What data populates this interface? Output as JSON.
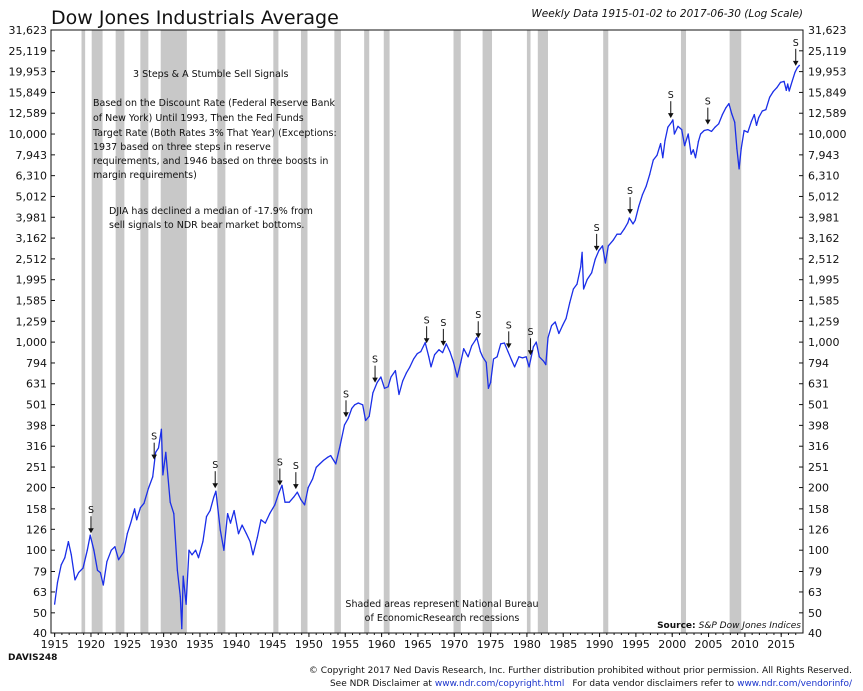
{
  "chart_data": {
    "type": "line",
    "title": "Dow Jones Industrials Average",
    "subtitle": "Weekly Data 1915-01-02 to 2017-06-30 (Log Scale)",
    "x_ticks": [
      "1915",
      "1920",
      "1925",
      "1930",
      "1935",
      "1940",
      "1945",
      "1950",
      "1955",
      "1960",
      "1965",
      "1970",
      "1975",
      "1980",
      "1985",
      "1990",
      "1995",
      "2000",
      "2005",
      "2010",
      "2015"
    ],
    "y_ticks": [
      "40",
      "50",
      "63",
      "79",
      "100",
      "126",
      "158",
      "200",
      "251",
      "316",
      "398",
      "501",
      "631",
      "794",
      "1,000",
      "1,259",
      "1,585",
      "1,995",
      "2,512",
      "3,162",
      "3,981",
      "5,012",
      "6,310",
      "7,943",
      "10,000",
      "12,589",
      "15,849",
      "19,953",
      "25,119",
      "31,623"
    ],
    "y_scale": "log",
    "xlim": [
      1914.5,
      2018.0
    ],
    "ylim": [
      40,
      31623
    ],
    "line_color": "#1a2ee8",
    "recession_color": "#c8c8c8",
    "recessions": [
      [
        1918.7,
        1919.2
      ],
      [
        1920.1,
        1921.6
      ],
      [
        1923.4,
        1924.6
      ],
      [
        1926.8,
        1927.9
      ],
      [
        1929.6,
        1933.2
      ],
      [
        1937.4,
        1938.5
      ],
      [
        1945.1,
        1945.8
      ],
      [
        1948.9,
        1949.8
      ],
      [
        1953.5,
        1954.4
      ],
      [
        1957.6,
        1958.3
      ],
      [
        1960.3,
        1961.1
      ],
      [
        1969.9,
        1970.9
      ],
      [
        1973.9,
        1975.2
      ],
      [
        1980.0,
        1980.5
      ],
      [
        1981.5,
        1982.9
      ],
      [
        1990.5,
        1991.2
      ],
      [
        2001.2,
        2001.9
      ],
      [
        2007.9,
        2009.5
      ]
    ],
    "series": [
      {
        "values": [
          [
            1915.0,
            55
          ],
          [
            1915.4,
            70
          ],
          [
            1915.9,
            85
          ],
          [
            1916.4,
            92
          ],
          [
            1916.9,
            110
          ],
          [
            1917.3,
            95
          ],
          [
            1917.8,
            72
          ],
          [
            1918.3,
            78
          ],
          [
            1918.9,
            82
          ],
          [
            1919.5,
            100
          ],
          [
            1919.9,
            118
          ],
          [
            1920.4,
            100
          ],
          [
            1920.9,
            80
          ],
          [
            1921.3,
            78
          ],
          [
            1921.7,
            68
          ],
          [
            1922.2,
            88
          ],
          [
            1922.8,
            100
          ],
          [
            1923.3,
            104
          ],
          [
            1923.8,
            90
          ],
          [
            1924.5,
            98
          ],
          [
            1925.0,
            120
          ],
          [
            1925.5,
            136
          ],
          [
            1926.0,
            158
          ],
          [
            1926.3,
            140
          ],
          [
            1926.8,
            160
          ],
          [
            1927.3,
            168
          ],
          [
            1927.9,
            198
          ],
          [
            1928.5,
            225
          ],
          [
            1928.9,
            295
          ],
          [
            1929.3,
            310
          ],
          [
            1929.7,
            381
          ],
          [
            1929.9,
            230
          ],
          [
            1930.3,
            295
          ],
          [
            1930.9,
            170
          ],
          [
            1931.4,
            150
          ],
          [
            1931.9,
            80
          ],
          [
            1932.3,
            60
          ],
          [
            1932.5,
            42
          ],
          [
            1932.7,
            75
          ],
          [
            1933.1,
            55
          ],
          [
            1933.5,
            100
          ],
          [
            1933.9,
            95
          ],
          [
            1934.4,
            100
          ],
          [
            1934.8,
            92
          ],
          [
            1935.4,
            110
          ],
          [
            1935.9,
            145
          ],
          [
            1936.4,
            155
          ],
          [
            1936.9,
            180
          ],
          [
            1937.2,
            192
          ],
          [
            1937.8,
            125
          ],
          [
            1938.3,
            100
          ],
          [
            1938.8,
            150
          ],
          [
            1939.2,
            135
          ],
          [
            1939.7,
            155
          ],
          [
            1940.3,
            120
          ],
          [
            1940.8,
            132
          ],
          [
            1941.4,
            120
          ],
          [
            1941.9,
            110
          ],
          [
            1942.3,
            95
          ],
          [
            1942.9,
            115
          ],
          [
            1943.4,
            140
          ],
          [
            1944.0,
            135
          ],
          [
            1944.6,
            150
          ],
          [
            1945.3,
            165
          ],
          [
            1945.9,
            190
          ],
          [
            1946.3,
            205
          ],
          [
            1946.7,
            170
          ],
          [
            1947.3,
            170
          ],
          [
            1947.9,
            180
          ],
          [
            1948.4,
            190
          ],
          [
            1948.9,
            175
          ],
          [
            1949.4,
            165
          ],
          [
            1949.9,
            200
          ],
          [
            1950.5,
            220
          ],
          [
            1951.0,
            250
          ],
          [
            1951.5,
            260
          ],
          [
            1952.0,
            270
          ],
          [
            1952.6,
            280
          ],
          [
            1953.0,
            285
          ],
          [
            1953.7,
            260
          ],
          [
            1954.3,
            320
          ],
          [
            1954.9,
            400
          ],
          [
            1955.4,
            430
          ],
          [
            1955.9,
            480
          ],
          [
            1956.3,
            500
          ],
          [
            1956.8,
            510
          ],
          [
            1957.4,
            500
          ],
          [
            1957.8,
            420
          ],
          [
            1958.3,
            440
          ],
          [
            1958.8,
            570
          ],
          [
            1959.4,
            640
          ],
          [
            1959.9,
            680
          ],
          [
            1960.4,
            600
          ],
          [
            1960.9,
            610
          ],
          [
            1961.3,
            680
          ],
          [
            1961.9,
            730
          ],
          [
            1962.4,
            560
          ],
          [
            1962.9,
            650
          ],
          [
            1963.4,
            710
          ],
          [
            1963.9,
            760
          ],
          [
            1964.4,
            830
          ],
          [
            1964.9,
            880
          ],
          [
            1965.4,
            900
          ],
          [
            1966.0,
            995
          ],
          [
            1966.5,
            850
          ],
          [
            1966.8,
            760
          ],
          [
            1967.3,
            870
          ],
          [
            1967.9,
            920
          ],
          [
            1968.4,
            890
          ],
          [
            1968.9,
            980
          ],
          [
            1969.4,
            900
          ],
          [
            1969.9,
            800
          ],
          [
            1970.4,
            680
          ],
          [
            1970.9,
            800
          ],
          [
            1971.3,
            930
          ],
          [
            1971.9,
            850
          ],
          [
            1972.4,
            960
          ],
          [
            1972.9,
            1020
          ],
          [
            1973.1,
            1051
          ],
          [
            1973.6,
            900
          ],
          [
            1973.9,
            850
          ],
          [
            1974.4,
            800
          ],
          [
            1974.7,
            600
          ],
          [
            1975.0,
            640
          ],
          [
            1975.4,
            830
          ],
          [
            1975.9,
            850
          ],
          [
            1976.4,
            980
          ],
          [
            1976.9,
            990
          ],
          [
            1977.4,
            900
          ],
          [
            1977.9,
            820
          ],
          [
            1978.3,
            760
          ],
          [
            1978.9,
            850
          ],
          [
            1979.4,
            840
          ],
          [
            1979.9,
            850
          ],
          [
            1980.3,
            760
          ],
          [
            1980.9,
            950
          ],
          [
            1981.3,
            1000
          ],
          [
            1981.7,
            850
          ],
          [
            1982.3,
            810
          ],
          [
            1982.6,
            780
          ],
          [
            1982.9,
            1050
          ],
          [
            1983.4,
            1200
          ],
          [
            1983.9,
            1250
          ],
          [
            1984.4,
            1100
          ],
          [
            1984.9,
            1200
          ],
          [
            1985.4,
            1300
          ],
          [
            1985.9,
            1550
          ],
          [
            1986.4,
            1800
          ],
          [
            1986.9,
            1900
          ],
          [
            1987.4,
            2300
          ],
          [
            1987.6,
            2700
          ],
          [
            1987.8,
            1800
          ],
          [
            1988.3,
            2000
          ],
          [
            1988.9,
            2150
          ],
          [
            1989.4,
            2500
          ],
          [
            1989.9,
            2750
          ],
          [
            1990.4,
            2900
          ],
          [
            1990.8,
            2400
          ],
          [
            1991.2,
            2900
          ],
          [
            1991.9,
            3100
          ],
          [
            1992.4,
            3300
          ],
          [
            1992.9,
            3300
          ],
          [
            1993.4,
            3500
          ],
          [
            1993.9,
            3750
          ],
          [
            1994.1,
            3950
          ],
          [
            1994.6,
            3700
          ],
          [
            1994.9,
            3850
          ],
          [
            1995.4,
            4500
          ],
          [
            1995.9,
            5100
          ],
          [
            1996.4,
            5600
          ],
          [
            1996.9,
            6400
          ],
          [
            1997.4,
            7500
          ],
          [
            1997.9,
            7900
          ],
          [
            1998.4,
            9000
          ],
          [
            1998.7,
            7700
          ],
          [
            1999.0,
            9300
          ],
          [
            1999.4,
            10800
          ],
          [
            1999.9,
            11400
          ],
          [
            2000.1,
            11700
          ],
          [
            2000.3,
            10000
          ],
          [
            2000.8,
            10900
          ],
          [
            2001.3,
            10500
          ],
          [
            2001.7,
            8800
          ],
          [
            2002.2,
            10000
          ],
          [
            2002.6,
            8000
          ],
          [
            2002.9,
            8400
          ],
          [
            2003.2,
            7700
          ],
          [
            2003.6,
            9200
          ],
          [
            2003.9,
            10000
          ],
          [
            2004.4,
            10400
          ],
          [
            2004.9,
            10500
          ],
          [
            2005.4,
            10300
          ],
          [
            2005.9,
            10800
          ],
          [
            2006.4,
            11200
          ],
          [
            2006.9,
            12400
          ],
          [
            2007.4,
            13400
          ],
          [
            2007.8,
            14000
          ],
          [
            2008.2,
            12500
          ],
          [
            2008.6,
            11400
          ],
          [
            2008.9,
            8500
          ],
          [
            2009.2,
            6800
          ],
          [
            2009.5,
            8500
          ],
          [
            2009.9,
            10400
          ],
          [
            2010.4,
            10200
          ],
          [
            2010.9,
            11500
          ],
          [
            2011.3,
            12400
          ],
          [
            2011.6,
            11000
          ],
          [
            2011.9,
            12000
          ],
          [
            2012.4,
            12900
          ],
          [
            2012.9,
            13100
          ],
          [
            2013.4,
            15000
          ],
          [
            2013.9,
            16000
          ],
          [
            2014.4,
            16700
          ],
          [
            2014.9,
            17700
          ],
          [
            2015.4,
            17900
          ],
          [
            2015.7,
            16200
          ],
          [
            2015.9,
            17400
          ],
          [
            2016.1,
            16100
          ],
          [
            2016.5,
            17900
          ],
          [
            2016.9,
            19800
          ],
          [
            2017.2,
            20800
          ],
          [
            2017.5,
            21400
          ]
        ]
      }
    ],
    "sell_signals": [
      1920.0,
      1928.7,
      1937.1,
      1946.0,
      1948.2,
      1955.1,
      1959.1,
      1966.2,
      1968.5,
      1973.3,
      1977.5,
      1980.5,
      1989.6,
      1994.2,
      1999.8,
      2004.9,
      2017.0
    ],
    "signal_label": "S",
    "annotations": {
      "heading": "3 Steps & A Stumble Sell Signals",
      "p1_lines": [
        "Based  on the Discount Rate (Federal Reserve Bank",
        "of  New  York)  Until 1993,  Then the Fed Funds",
        "Target Rate (Both Rates 3% That Year) (Exceptions:",
        "1937      based      on      three      steps      in      reserve",
        "requirements,  and 1946 based on three boosts in",
        "margin requirements)"
      ],
      "p2_lines": [
        "DJIA  has declined  a median of  -17.9%  from",
        "sell signals to NDR bear market bottoms."
      ],
      "shaded_lines": [
        "Shaded areas represent National Bureau",
        "of EconomicResearch recessions"
      ],
      "source_label": "Source:",
      "source_value": "S&P Dow Jones Indices"
    }
  },
  "footer": {
    "code": "DAVIS248",
    "copyright": "© Copyright 2017 Ned Davis Research, Inc. Further distribution prohibited without prior permission. All Rights Reserved.",
    "disc1": "See NDR Disclaimer at",
    "url1": "www.ndr.com/copyright.html",
    "disc2": "For data vendor disclaimers refer to",
    "url2": "www.ndr.com/vendorinfo/"
  }
}
